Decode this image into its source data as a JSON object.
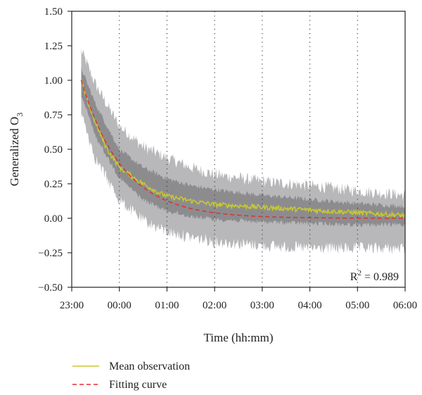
{
  "chart_data": {
    "type": "line",
    "title": "",
    "xlabel": "Time (hh:mm)",
    "ylabel": {
      "text": "Generalized O",
      "subscript": "3"
    },
    "x_tick_labels": [
      "23:00",
      "00:00",
      "01:00",
      "02:00",
      "03:00",
      "04:00",
      "05:00",
      "06:00"
    ],
    "y_tick_labels": [
      "1.50",
      "1.25",
      "1.00",
      "0.75",
      "0.50",
      "0.25",
      "0.00",
      "−0.25",
      "−0.50"
    ],
    "xlim_hours": [
      0,
      7
    ],
    "ylim": [
      -0.5,
      1.5
    ],
    "y_ticks": [
      1.5,
      1.25,
      1.0,
      0.75,
      0.5,
      0.25,
      0.0,
      -0.25,
      -0.5
    ],
    "vertical_dotted_gridlines_hours": [
      1,
      2,
      3,
      4,
      5,
      6
    ],
    "data_start_hours": 0.2,
    "data_end_hours": 7.0,
    "annotation": {
      "base": "R",
      "superscript": "2",
      "rest": " = 0.989"
    },
    "legend_position": "bottom-left, below plot",
    "series": [
      {
        "name": "Mean observation",
        "style": "solid",
        "color": "#c8c832",
        "x_hours": [
          0.2,
          0.3,
          0.4,
          0.5,
          0.6,
          0.7,
          0.8,
          0.9,
          1.0,
          1.2,
          1.4,
          1.6,
          1.8,
          2.0,
          2.3,
          2.6,
          3.0,
          3.5,
          4.0,
          4.5,
          5.0,
          5.5,
          6.0,
          6.5,
          7.0
        ],
        "values": [
          1.0,
          0.88,
          0.78,
          0.69,
          0.61,
          0.53,
          0.47,
          0.42,
          0.37,
          0.32,
          0.27,
          0.23,
          0.19,
          0.16,
          0.14,
          0.12,
          0.1,
          0.09,
          0.08,
          0.07,
          0.06,
          0.05,
          0.04,
          0.03,
          0.02
        ]
      },
      {
        "name": "Fitting curve",
        "style": "dashed",
        "color": "#e03030",
        "model": {
          "form": "exponential decay",
          "amplitude": 1.0,
          "rate_per_hour": 1.15,
          "x0_hours": 0.2
        },
        "x_hours": [
          0.2,
          0.5,
          1.0,
          1.5,
          2.0,
          2.5,
          3.0,
          4.0,
          5.0,
          6.0,
          7.0
        ],
        "values": [
          1.0,
          0.71,
          0.4,
          0.22,
          0.13,
          0.07,
          0.04,
          0.01,
          0.0,
          0.0,
          0.0
        ]
      }
    ],
    "bands": [
      {
        "name": "range",
        "color": "#b8b8ba",
        "x_hours": [
          0.2,
          0.5,
          1.0,
          1.5,
          2.0,
          2.5,
          3.0,
          4.0,
          5.0,
          6.0,
          7.0
        ],
        "upper": [
          1.2,
          0.95,
          0.65,
          0.5,
          0.42,
          0.35,
          0.3,
          0.25,
          0.22,
          0.18,
          0.15
        ],
        "lower": [
          0.78,
          0.45,
          0.15,
          0.0,
          -0.08,
          -0.12,
          -0.15,
          -0.18,
          -0.2,
          -0.2,
          -0.2
        ]
      },
      {
        "name": "spread",
        "color": "#8c8c8e",
        "x_hours": [
          0.2,
          0.5,
          1.0,
          1.5,
          2.0,
          2.5,
          3.0,
          4.0,
          5.0,
          6.0,
          7.0
        ],
        "upper": [
          1.08,
          0.82,
          0.49,
          0.36,
          0.28,
          0.23,
          0.2,
          0.16,
          0.13,
          0.1,
          0.08
        ],
        "lower": [
          0.9,
          0.6,
          0.3,
          0.14,
          0.06,
          0.02,
          0.0,
          -0.02,
          -0.03,
          -0.04,
          -0.04
        ]
      }
    ]
  }
}
